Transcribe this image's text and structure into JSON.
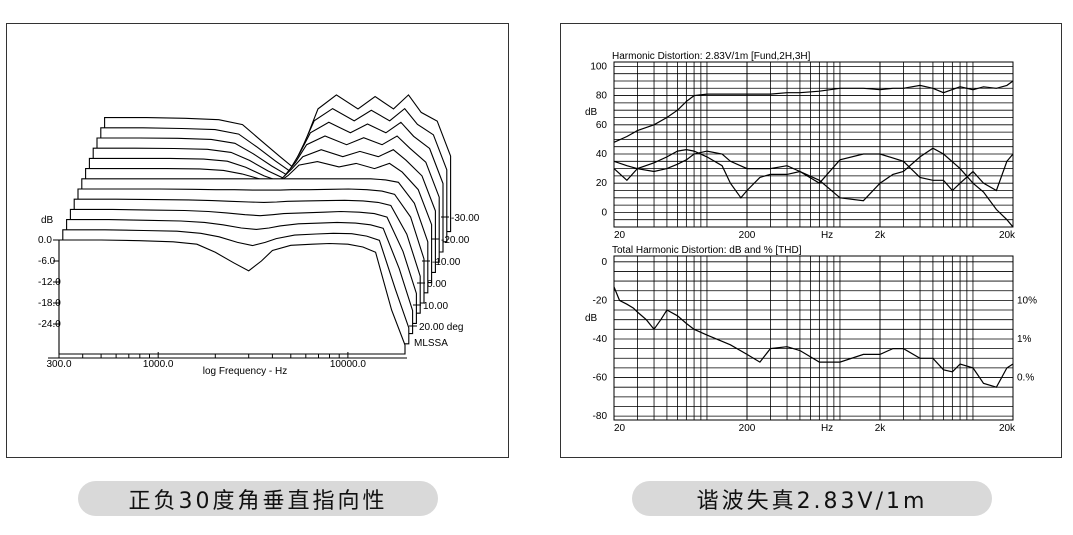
{
  "captions": {
    "left": "正负30度角垂直指向性",
    "right": "谐波失真2.83V/1m"
  },
  "chart_data": [
    {
      "type": "line",
      "subtype": "waterfall",
      "title": "",
      "xlabel": "log Frequency - Hz",
      "ylabel": "dB",
      "x_scale": "log",
      "xlim": [
        300,
        20000
      ],
      "x_ticks": [
        "300.0",
        "1000.0",
        "10000.0"
      ],
      "y_ticks": [
        "0.0",
        "-6.0",
        "-12.0",
        "-18.0",
        "-24.0"
      ],
      "ylim": [
        -30,
        3
      ],
      "depth_ticks": [
        "-30.00",
        "-20.00",
        "-10.00",
        "0.00",
        "10.00",
        "20.00 deg"
      ],
      "depth_label": "MLSSA",
      "grid": false,
      "freq": [
        300,
        500,
        800,
        1200,
        1600,
        2000,
        2500,
        3000,
        3500,
        4000,
        5000,
        6500,
        8000,
        10000,
        12000,
        14000,
        17000,
        20000
      ],
      "series": [
        {
          "values": [
            0,
            0,
            -0.2,
            -0.5,
            -1.2,
            -3.5,
            -6.5,
            -8.8,
            -6.0,
            -3.0,
            -1.5,
            -1.2,
            -1.0,
            -1.2,
            -2.0,
            -3.5,
            -20,
            -30
          ]
        },
        {
          "values": [
            0,
            0,
            -0.2,
            -0.4,
            -1.0,
            -2.0,
            -3.6,
            -4.5,
            -3.6,
            -2.5,
            -1.5,
            -1.2,
            -1.0,
            -1.1,
            -1.8,
            -3.0,
            -17,
            -28
          ]
        },
        {
          "values": [
            0,
            0,
            -0.2,
            -0.4,
            -0.8,
            -1.5,
            -2.4,
            -2.8,
            -2.4,
            -1.8,
            -1.2,
            -1.0,
            -0.8,
            -1.0,
            -1.5,
            -2.5,
            -14,
            -26
          ]
        },
        {
          "values": [
            0,
            0,
            -0.2,
            -0.3,
            -0.6,
            -1.0,
            -1.5,
            -1.8,
            -1.5,
            -1.2,
            -1.0,
            -0.8,
            -0.6,
            -0.8,
            -1.2,
            -2.2,
            -12,
            -24
          ]
        },
        {
          "values": [
            0,
            0,
            -0.1,
            -0.2,
            -0.4,
            -0.6,
            -0.8,
            -0.9,
            -0.8,
            -0.6,
            -0.5,
            -0.4,
            -0.3,
            -0.5,
            -0.9,
            -1.8,
            -10,
            -22
          ]
        },
        {
          "values": [
            0,
            0,
            0,
            -0.1,
            -0.2,
            -0.2,
            -0.3,
            -0.3,
            -0.3,
            -0.2,
            -0.2,
            -0.1,
            0,
            -0.2,
            -0.6,
            -1.5,
            -8,
            -20
          ]
        },
        {
          "values": [
            0,
            0,
            0,
            0,
            0,
            0,
            0,
            0,
            0,
            0,
            0,
            0,
            0,
            0,
            -0.3,
            -1.0,
            -7,
            -18
          ]
        },
        {
          "values": [
            0,
            0,
            0,
            -0.1,
            -0.5,
            -1.5,
            -3.0,
            -4.5,
            -2.0,
            1.0,
            2.0,
            0.5,
            1.5,
            0,
            1.5,
            -1.0,
            -6,
            -16
          ]
        },
        {
          "values": [
            0,
            0,
            0,
            -0.2,
            -0.8,
            -2.5,
            -5.0,
            -6.5,
            -3.0,
            0.5,
            2.5,
            0.5,
            2.0,
            0.5,
            2.5,
            -0.5,
            -5,
            -15
          ]
        },
        {
          "values": [
            0,
            0,
            -0.1,
            -0.3,
            -1.2,
            -3.5,
            -6.5,
            -8.5,
            -4.0,
            1.0,
            3.5,
            1.0,
            3.0,
            1.0,
            3.5,
            0,
            -4,
            -14
          ]
        },
        {
          "values": [
            0,
            0,
            -0.1,
            -0.4,
            -1.5,
            -4.5,
            -8.0,
            -10.5,
            -4.5,
            1.5,
            4.5,
            1.5,
            4.0,
            1.5,
            4.5,
            0.5,
            -3,
            -13
          ]
        },
        {
          "values": [
            0,
            0,
            -0.2,
            -0.5,
            -1.8,
            -5.5,
            -9.5,
            -12.5,
            -5.0,
            2.0,
            5.5,
            2.0,
            5.0,
            2.0,
            5.5,
            1.0,
            -2,
            -12
          ]
        },
        {
          "values": [
            0,
            0,
            -0.2,
            -0.6,
            -2.0,
            -6.5,
            -11.0,
            -14.5,
            -5.5,
            2.5,
            6.5,
            2.5,
            6.0,
            2.5,
            6.5,
            1.5,
            -1,
            -11
          ]
        }
      ]
    },
    {
      "type": "line",
      "title": "Harmonic Distortion: 2.83V/1m [Fund,2H,3H]",
      "ylabel": "dB",
      "x_scale": "log",
      "xlim": [
        20,
        20000
      ],
      "ylim": [
        -10,
        103
      ],
      "x_ticks": [
        "20",
        "200",
        "Hz",
        "2k",
        "20k"
      ],
      "y_ticks": [
        "100",
        "80",
        "60",
        "40",
        "20",
        "0"
      ],
      "grid": true,
      "series": [
        {
          "name": "Fund",
          "x": [
            20,
            25,
            30,
            40,
            50,
            60,
            70,
            80,
            100,
            130,
            200,
            300,
            400,
            500,
            700,
            1000,
            1500,
            2000,
            2500,
            3000,
            4000,
            5000,
            6000,
            8000,
            10000,
            12000,
            15000,
            18000,
            20000
          ],
          "y": [
            48,
            52,
            56,
            60,
            65,
            70,
            76,
            80,
            81,
            81,
            81,
            81,
            82,
            82,
            83,
            85,
            85,
            84,
            85,
            85,
            87,
            85,
            82,
            86,
            84,
            86,
            85,
            87,
            90
          ]
        },
        {
          "name": "2H",
          "x": [
            20,
            25,
            30,
            40,
            50,
            60,
            70,
            80,
            100,
            130,
            150,
            180,
            200,
            250,
            300,
            400,
            500,
            700,
            1000,
            1500,
            2000,
            2500,
            3000,
            4000,
            5000,
            6000,
            8000,
            10000,
            12000,
            15000,
            18000,
            20000
          ],
          "y": [
            35,
            32,
            30,
            34,
            38,
            42,
            43,
            42,
            38,
            32,
            20,
            10,
            15,
            24,
            26,
            26,
            28,
            22,
            10,
            8,
            20,
            26,
            28,
            38,
            44,
            40,
            30,
            20,
            14,
            2,
            -5,
            -15
          ]
        },
        {
          "name": "3H",
          "x": [
            20,
            25,
            30,
            40,
            50,
            60,
            70,
            80,
            100,
            130,
            150,
            200,
            300,
            400,
            500,
            700,
            1000,
            1500,
            2000,
            3000,
            4000,
            5000,
            6000,
            7000,
            8000,
            10000,
            12000,
            15000,
            18000,
            20000
          ],
          "y": [
            30,
            22,
            30,
            28,
            30,
            33,
            36,
            40,
            42,
            40,
            35,
            30,
            30,
            32,
            28,
            20,
            36,
            40,
            40,
            35,
            24,
            22,
            22,
            15,
            20,
            28,
            20,
            15,
            35,
            40
          ]
        }
      ]
    },
    {
      "type": "line",
      "title": "Total Harmonic Distortion: dB and % [THD]",
      "ylabel": "dB",
      "x_scale": "log",
      "xlim": [
        20,
        20000
      ],
      "ylim": [
        -82,
        3
      ],
      "x_ticks": [
        "20",
        "200",
        "Hz",
        "2k",
        "20k"
      ],
      "y_ticks": [
        "0",
        "-20",
        "-40",
        "-60",
        "-80"
      ],
      "right_ticks": [
        "10%",
        "1%",
        "0.%"
      ],
      "grid": true,
      "series": [
        {
          "x": [
            20,
            22,
            25,
            28,
            30,
            35,
            40,
            45,
            50,
            60,
            70,
            80,
            100,
            150,
            200,
            250,
            300,
            400,
            500,
            700,
            1000,
            1500,
            2000,
            2500,
            3000,
            4000,
            5000,
            6000,
            7000,
            8000,
            10000,
            12000,
            15000,
            18000,
            20000
          ],
          "y": [
            -13,
            -20,
            -22,
            -24,
            -26,
            -30,
            -35,
            -30,
            -25,
            -28,
            -32,
            -35,
            -38,
            -43,
            -48,
            -52,
            -45,
            -44,
            -46,
            -52,
            -52,
            -48,
            -48,
            -45,
            -45,
            -50,
            -50,
            -56,
            -57,
            -53,
            -55,
            -63,
            -65,
            -55,
            -53
          ]
        }
      ]
    }
  ]
}
